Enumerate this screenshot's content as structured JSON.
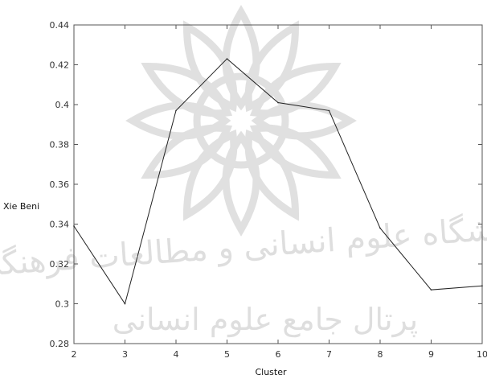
{
  "chart_data": {
    "type": "line",
    "xlabel": "Cluster",
    "ylabel": "Xie Beni",
    "xlim": [
      2,
      10
    ],
    "ylim": [
      0.28,
      0.44
    ],
    "x_ticks": [
      2,
      3,
      4,
      5,
      6,
      7,
      8,
      9,
      10
    ],
    "y_ticks": [
      0.28,
      0.3,
      0.32,
      0.34,
      0.36,
      0.38,
      0.4,
      0.42,
      0.44
    ],
    "x_tick_labels": [
      "2",
      "3",
      "4",
      "5",
      "6",
      "7",
      "8",
      "9",
      "10"
    ],
    "y_tick_labels": [
      "0.28",
      "0.3",
      "0.32",
      "0.34",
      "0.36",
      "0.38",
      "0.4",
      "0.42",
      "0.44"
    ],
    "series": [
      {
        "x": [
          2,
          3,
          4,
          5,
          6,
          7,
          8,
          9,
          10
        ],
        "values": [
          0.339,
          0.3,
          0.397,
          0.423,
          0.401,
          0.397,
          0.338,
          0.307,
          0.309
        ]
      }
    ],
    "grid": false,
    "line_color": "#222222"
  },
  "watermark": {
    "line1": "پژوهشگاه علوم انسانی و مطالعات فرهنگی",
    "line2": "پرتال جامع علوم انسانی"
  }
}
